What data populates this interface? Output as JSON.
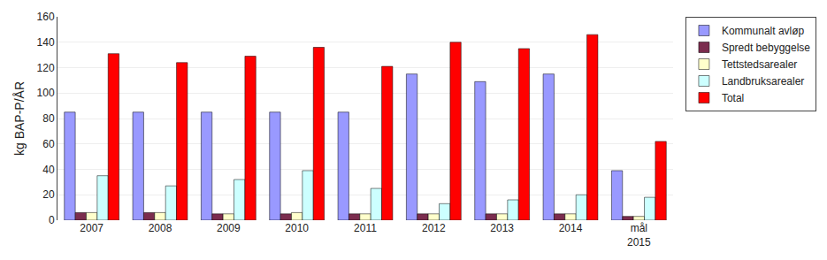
{
  "chart_data": {
    "type": "bar",
    "categories": [
      "2007",
      "2008",
      "2009",
      "2010",
      "2011",
      "2012",
      "2013",
      "2014",
      "mål\n2015"
    ],
    "series": [
      {
        "name": "Kommunalt avløp",
        "color": "#9999FF",
        "values": [
          85,
          85,
          85,
          85,
          85,
          115,
          109,
          115,
          39
        ]
      },
      {
        "name": "Spredt bebyggelse",
        "color": "#7B2D4E",
        "values": [
          6,
          6,
          5,
          5,
          5,
          5,
          5,
          5,
          3
        ]
      },
      {
        "name": "Tettstedsarealer",
        "color": "#FFFFCC",
        "values": [
          6,
          6,
          5,
          6,
          5,
          5,
          5,
          5,
          3
        ]
      },
      {
        "name": "Landbruksarealer",
        "color": "#CCFFFF",
        "values": [
          35,
          27,
          32,
          39,
          25,
          13,
          16,
          20,
          18
        ]
      },
      {
        "name": "Total",
        "color": "#FF0000",
        "values": [
          131,
          124,
          129,
          136,
          121,
          140,
          135,
          146,
          62
        ]
      }
    ],
    "ylabel": "kg BAP-P/ÅR",
    "ylim": [
      0,
      160
    ],
    "yticks": [
      0,
      20,
      40,
      60,
      80,
      100,
      120,
      140,
      160
    ],
    "grid": true,
    "legend": "right"
  }
}
